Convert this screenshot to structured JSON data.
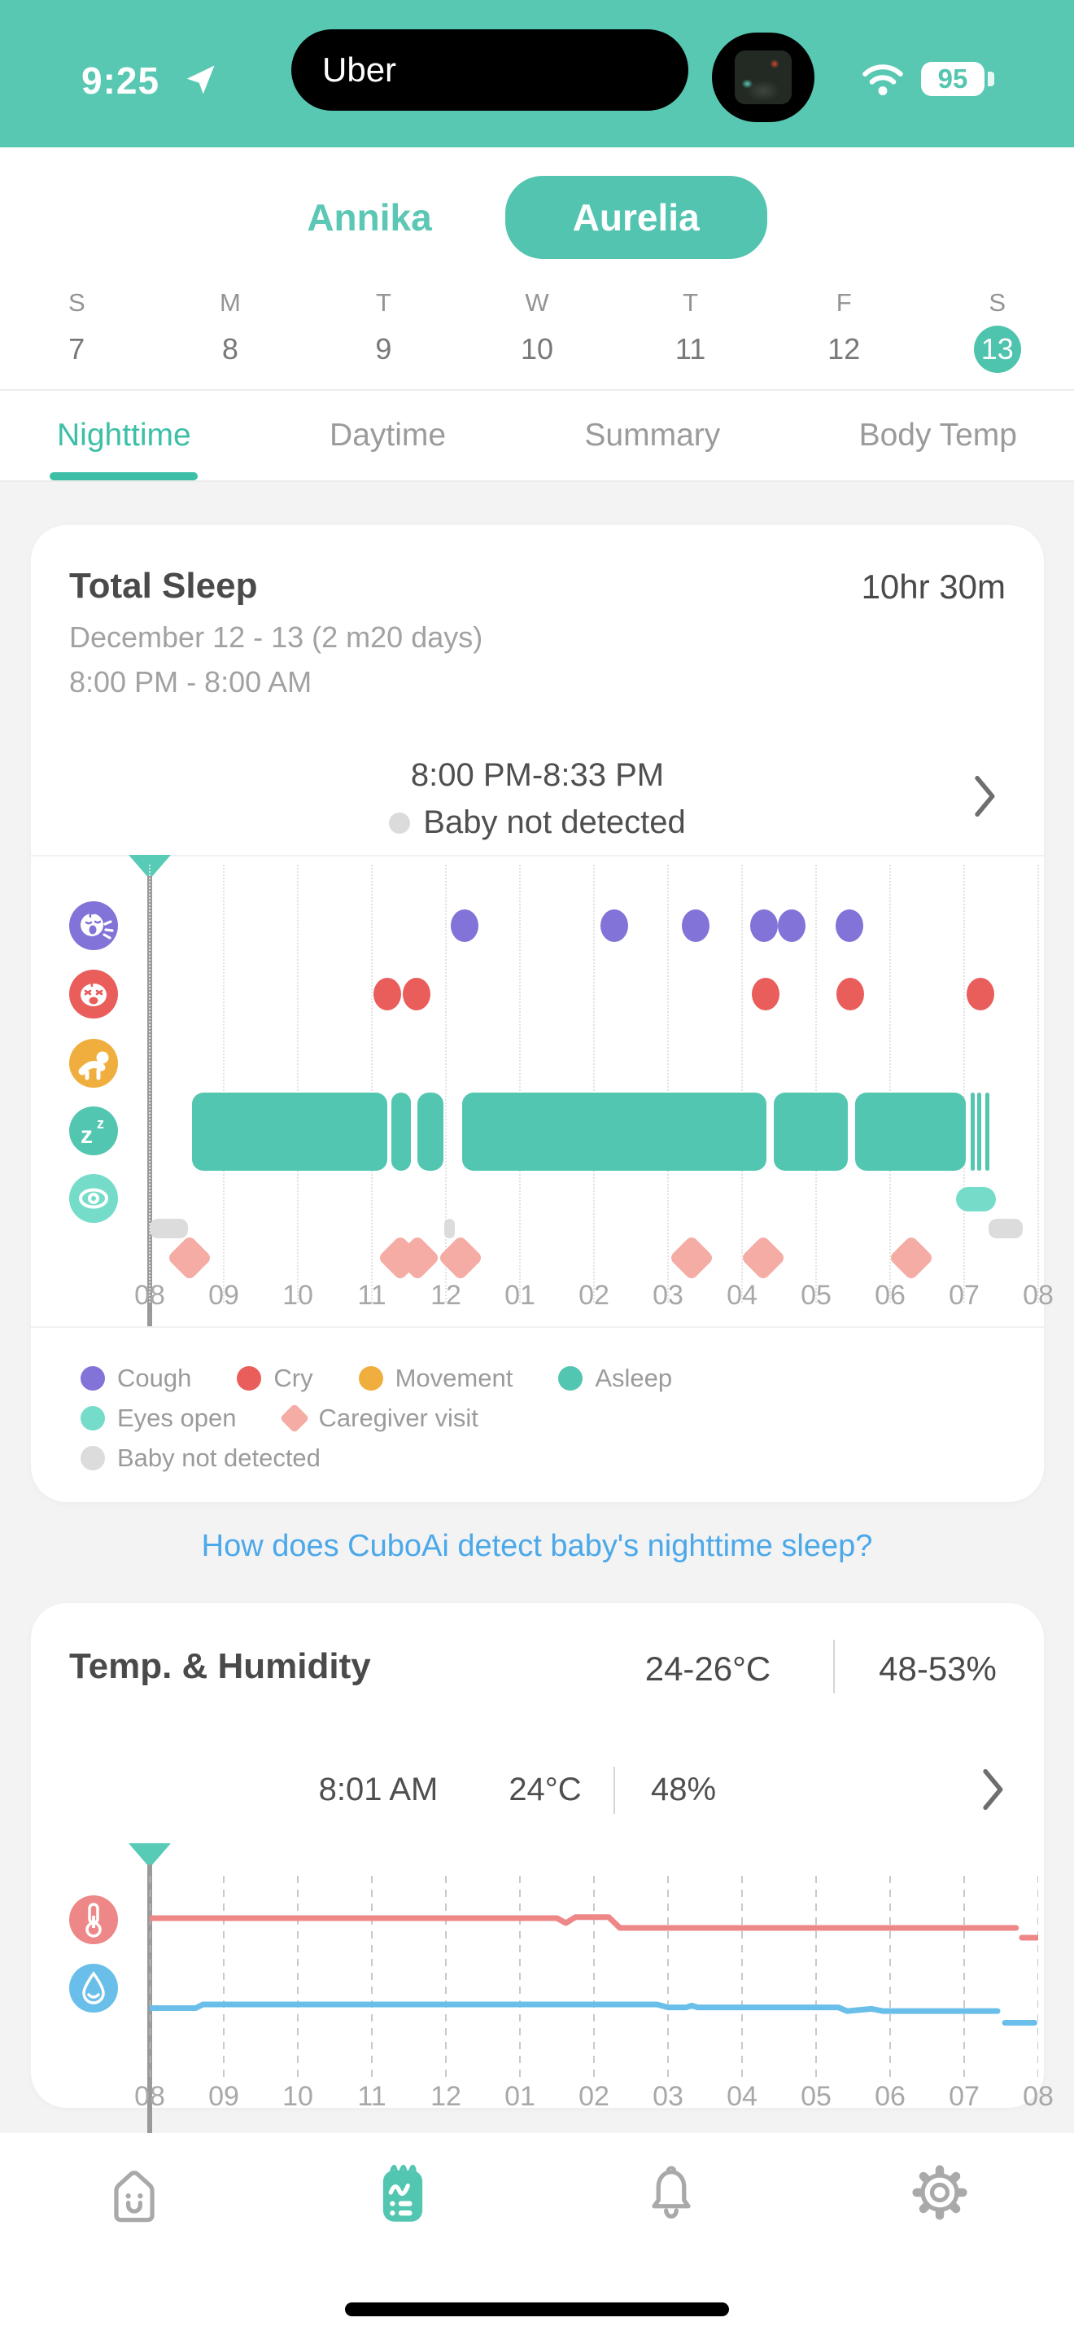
{
  "status_bar": {
    "time": "9:25",
    "live_activity_label": "Uber",
    "battery_level": "95"
  },
  "profile_tabs": [
    {
      "label": "Annika",
      "selected": false
    },
    {
      "label": "Aurelia",
      "selected": true
    }
  ],
  "calendar": {
    "day_letters": [
      "S",
      "M",
      "T",
      "W",
      "T",
      "F",
      "S"
    ],
    "dates": [
      "7",
      "8",
      "9",
      "10",
      "11",
      "12",
      "13"
    ],
    "selected_index": 6
  },
  "section_tabs": [
    {
      "label": "Nighttime",
      "selected": true
    },
    {
      "label": "Daytime",
      "selected": false
    },
    {
      "label": "Summary",
      "selected": false
    },
    {
      "label": "Body Temp",
      "selected": false
    }
  ],
  "total_sleep_card": {
    "title": "Total Sleep",
    "duration": "10hr 30m",
    "date_range": "December 12 - 13 (2 m20 days)",
    "time_window": "8:00 PM - 8:00 AM",
    "selected_segment": {
      "time_range": "8:00 PM-8:33 PM",
      "status": "Baby not detected"
    }
  },
  "legend": [
    {
      "label": "Cough",
      "color": "#8173D7",
      "shape": "circle",
      "row": 1
    },
    {
      "label": "Cry",
      "color": "#E95D5B",
      "shape": "circle",
      "row": 1
    },
    {
      "label": "Movement",
      "color": "#F0AE3E",
      "shape": "circle",
      "row": 1
    },
    {
      "label": "Asleep",
      "color": "#53C6B1",
      "shape": "circle",
      "row": 1
    },
    {
      "label": "Eyes open",
      "color": "#74DCC8",
      "shape": "circle",
      "row": 2
    },
    {
      "label": "Caregiver visit",
      "color": "#F4ACA4",
      "shape": "diamond",
      "row": 2
    },
    {
      "label": "Baby not detected",
      "color": "#DCDCDC",
      "shape": "circle",
      "row": 3
    }
  ],
  "help_link": "How does CuboAi detect baby's nighttime sleep?",
  "temp_humidity_card": {
    "title": "Temp. & Humidity",
    "temp_range": "24-26°C",
    "humidity_range": "48-53%",
    "current": {
      "time": "8:01 AM",
      "temperature": "24°C",
      "humidity": "48%"
    }
  },
  "chart_data": [
    {
      "type": "timeline",
      "title": "Nighttime sleep events",
      "x_axis": {
        "tick_labels": [
          "08",
          "09",
          "10",
          "11",
          "12",
          "01",
          "02",
          "03",
          "04",
          "05",
          "06",
          "07",
          "08"
        ],
        "start": "8:00 PM",
        "end": "8:00 AM",
        "span_hours": 12,
        "grid": "dotted"
      },
      "rows": [
        {
          "name": "cough",
          "kind": "dots",
          "color": "#8173D7",
          "event_hours": [
            4.25,
            6.28,
            7.37,
            8.3,
            8.67,
            9.45
          ]
        },
        {
          "name": "cry",
          "kind": "dots",
          "color": "#E95D5B",
          "event_hours": [
            3.21,
            3.6,
            8.32,
            9.46,
            11.22
          ]
        },
        {
          "name": "movement",
          "kind": "dots",
          "color": "#F0AE3E",
          "event_hours": []
        },
        {
          "name": "asleep",
          "kind": "bars",
          "color": "#53C6B1",
          "spans_hours": [
            [
              0.57,
              3.24
            ],
            [
              3.26,
              3.56
            ],
            [
              3.62,
              4.0
            ],
            [
              4.22,
              8.36
            ],
            [
              8.43,
              9.46
            ],
            [
              9.53,
              11.05
            ],
            [
              11.09,
              11.15
            ],
            [
              11.18,
              11.26
            ],
            [
              11.29,
              11.33
            ]
          ]
        },
        {
          "name": "eyes_open",
          "kind": "bars",
          "color": "#74DCC8",
          "spans_hours": [
            [
              10.89,
              11.46
            ]
          ]
        },
        {
          "name": "baby_not_detected",
          "kind": "bars",
          "color": "#DCDCDC",
          "spans_hours": [
            [
              0,
              0.55
            ],
            [
              3.98,
              4.15
            ],
            [
              11.33,
              11.82
            ]
          ]
        },
        {
          "name": "caregiver_visit",
          "kind": "diamonds",
          "color": "#F4ACA4",
          "event_hours": [
            0.54,
            3.38,
            3.62,
            4.2,
            7.32,
            8.29,
            10.29
          ]
        }
      ]
    },
    {
      "type": "line",
      "title": "Temp. & Humidity overnight",
      "x_axis": {
        "tick_labels": [
          "08",
          "09",
          "10",
          "11",
          "12",
          "01",
          "02",
          "03",
          "04",
          "05",
          "06",
          "07",
          "08"
        ],
        "start": "8:00 PM",
        "end": "8:00 AM",
        "span_hours": 12,
        "grid": "dashed"
      },
      "series": [
        {
          "name": "temperature",
          "unit": "°C",
          "color": "#EE8787",
          "range": [
            24,
            26
          ],
          "segments": [
            [
              [
                0,
                26
              ],
              [
                5.5,
                26
              ],
              [
                5.62,
                25.5
              ],
              [
                5.75,
                26.1
              ],
              [
                6.2,
                26.1
              ],
              [
                6.35,
                25
              ],
              [
                11.7,
                25
              ]
            ],
            [
              [
                11.78,
                24
              ],
              [
                11.98,
                24
              ]
            ]
          ]
        },
        {
          "name": "humidity",
          "unit": "%",
          "color": "#69BFE9",
          "range": [
            48,
            53
          ],
          "segments": [
            [
              [
                0,
                52
              ],
              [
                0.62,
                52
              ],
              [
                0.72,
                53
              ],
              [
                6.85,
                53
              ],
              [
                7.0,
                52.2
              ],
              [
                7.25,
                52.2
              ],
              [
                7.32,
                52.7
              ],
              [
                7.4,
                52.2
              ],
              [
                9.3,
                52.2
              ],
              [
                9.42,
                51.2
              ],
              [
                9.75,
                51.8
              ],
              [
                9.9,
                51.2
              ],
              [
                11.45,
                51.2
              ]
            ],
            [
              [
                11.55,
                48
              ],
              [
                11.95,
                48
              ]
            ]
          ]
        }
      ]
    }
  ],
  "tab_bar": [
    {
      "name": "home",
      "selected": false
    },
    {
      "name": "report",
      "selected": true
    },
    {
      "name": "notifications",
      "selected": false
    },
    {
      "name": "settings",
      "selected": false
    }
  ]
}
